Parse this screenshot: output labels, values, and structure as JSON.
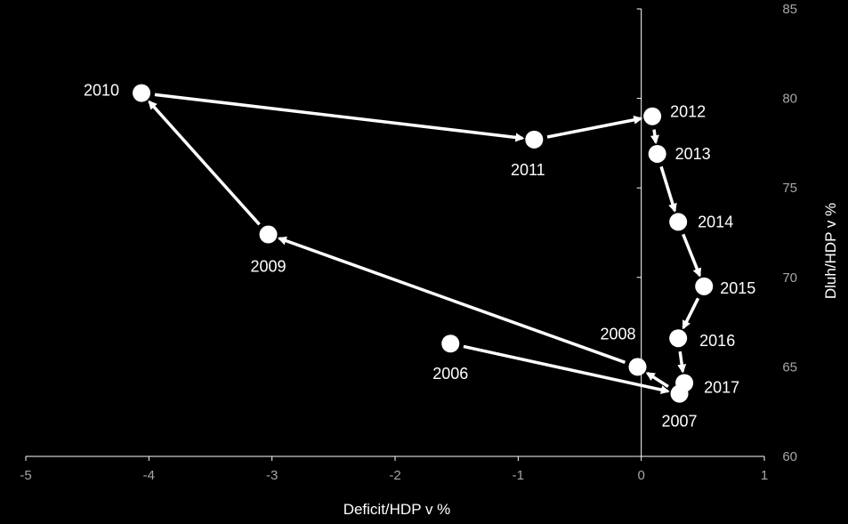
{
  "chart_data": {
    "type": "scatter",
    "title": "",
    "xlabel": "Deficit/HDP v %",
    "ylabel": "Dluh/HDP v %",
    "xlim": [
      -5,
      1
    ],
    "ylim": [
      60,
      85
    ],
    "x_ticks": [
      -5,
      -4,
      -3,
      -2,
      -1,
      0,
      1
    ],
    "y_ticks": [
      60,
      65,
      70,
      75,
      80,
      85
    ],
    "y_axis_side": "right",
    "grid": false,
    "legend": "none",
    "connected_path": true,
    "colors": {
      "background": "#000000",
      "marker": "#ffffff",
      "arrow": "#ffffff",
      "axis": "#ffffff",
      "tick_label": "#a6a6a6"
    },
    "points": [
      {
        "year": "2006",
        "x": -1.55,
        "y": 66.3
      },
      {
        "year": "2007",
        "x": 0.31,
        "y": 63.5
      },
      {
        "year": "2008",
        "x": -0.03,
        "y": 65.0
      },
      {
        "year": "2009",
        "x": -3.03,
        "y": 72.4
      },
      {
        "year": "2010",
        "x": -4.06,
        "y": 80.3
      },
      {
        "year": "2011",
        "x": -0.87,
        "y": 77.7
      },
      {
        "year": "2012",
        "x": 0.09,
        "y": 79.0
      },
      {
        "year": "2013",
        "x": 0.13,
        "y": 76.9
      },
      {
        "year": "2014",
        "x": 0.3,
        "y": 73.1
      },
      {
        "year": "2015",
        "x": 0.51,
        "y": 69.5
      },
      {
        "year": "2016",
        "x": 0.3,
        "y": 66.6
      },
      {
        "year": "2017",
        "x": 0.35,
        "y": 64.1
      }
    ]
  }
}
